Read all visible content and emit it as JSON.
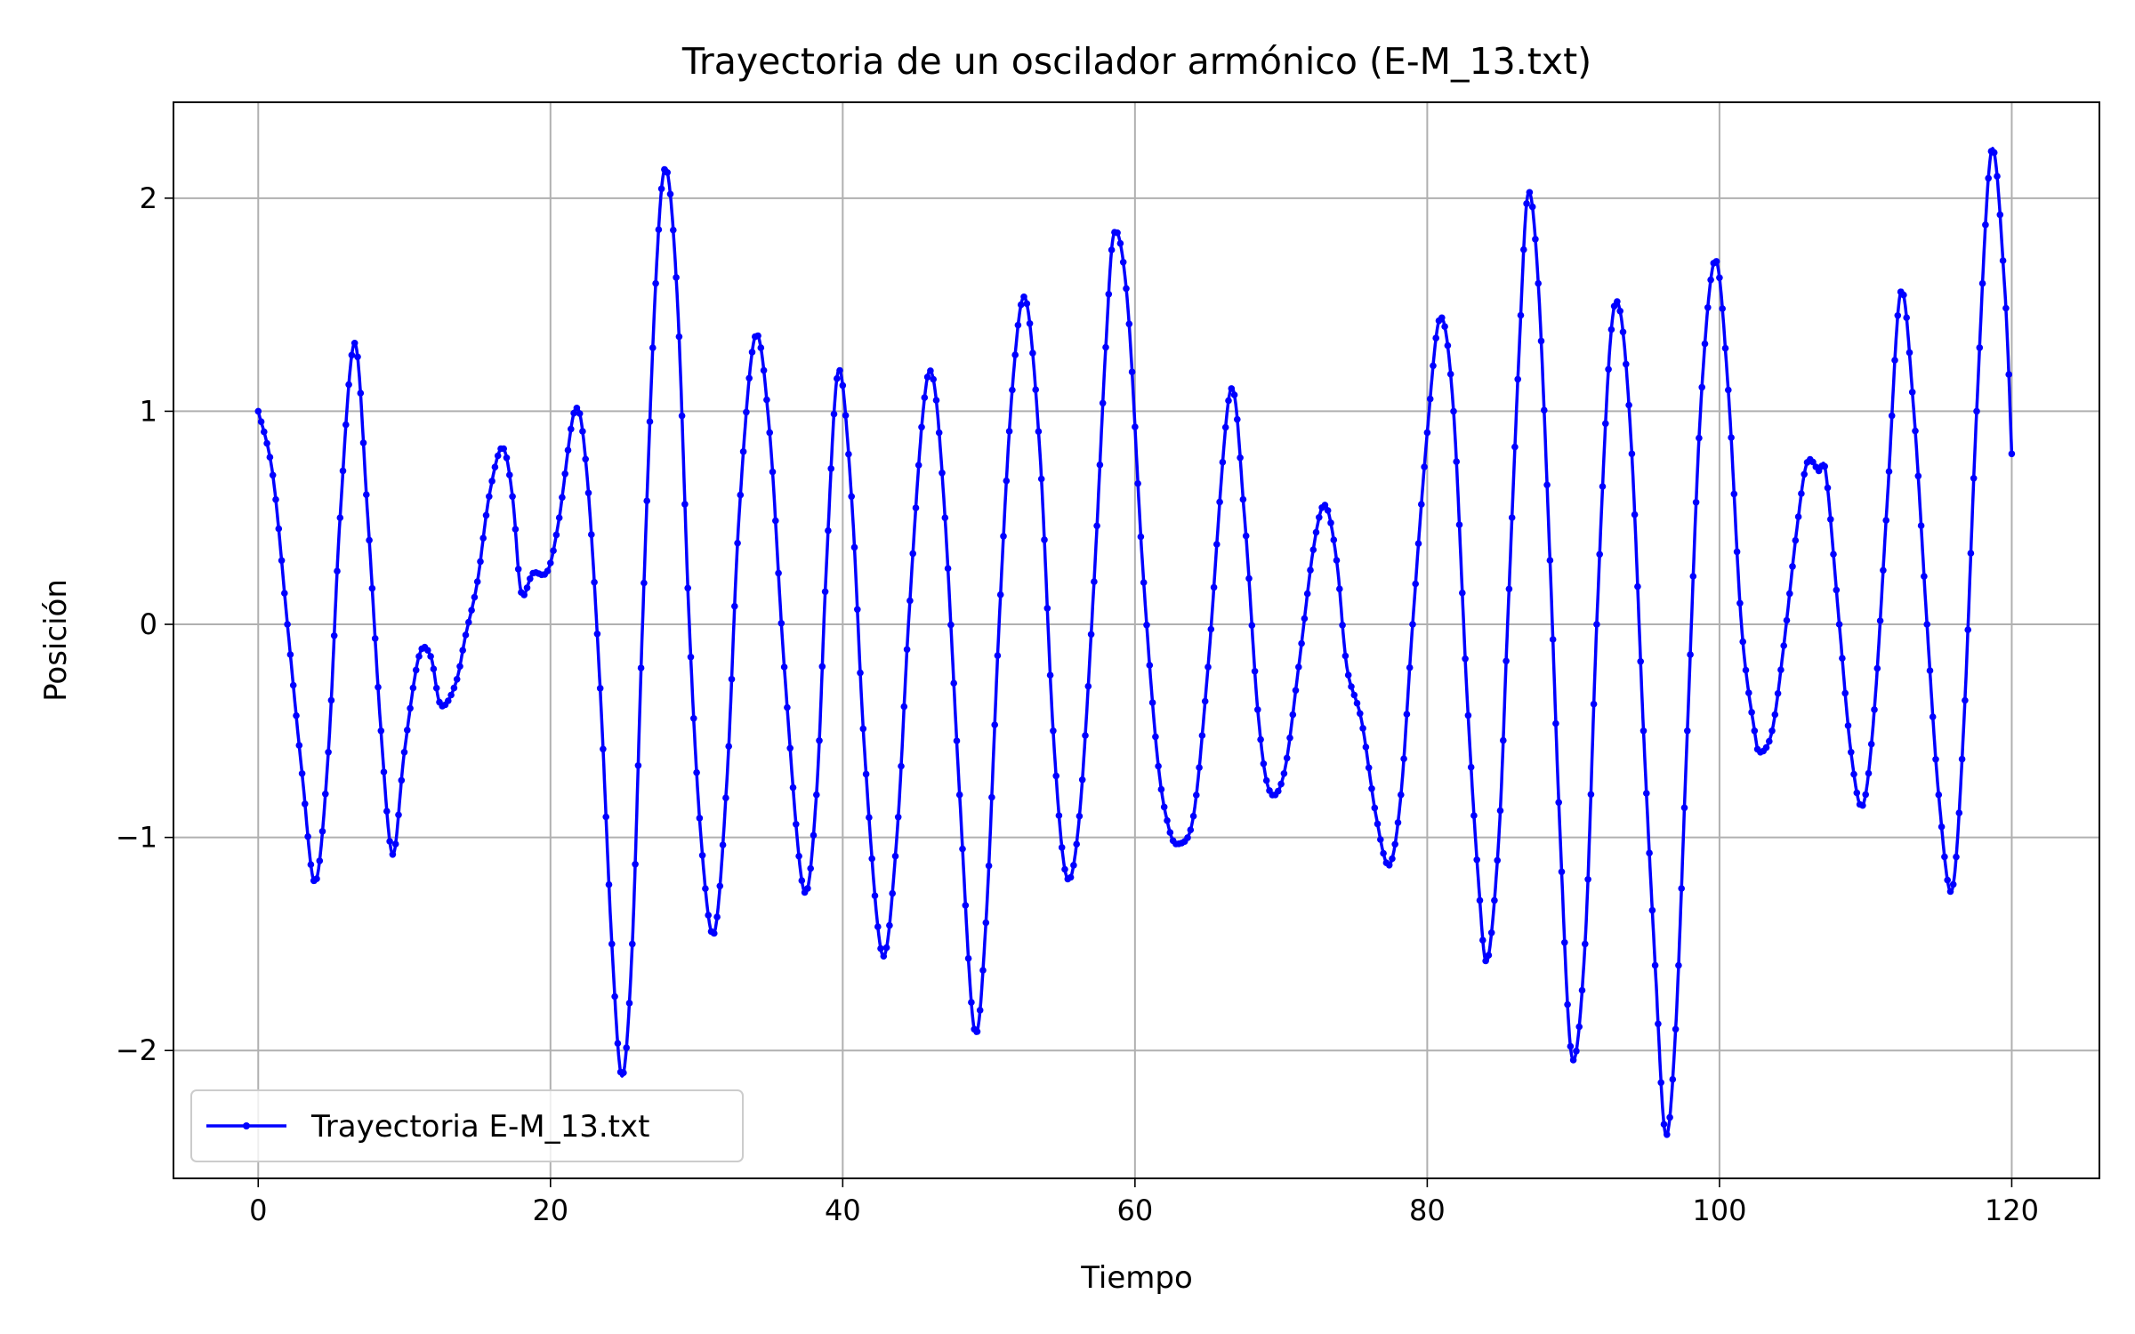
{
  "chart_data": {
    "type": "line",
    "title": "Trayectoria de un oscilador armónico (E-M_13.txt)",
    "xlabel": "Tiempo",
    "ylabel": "Posición",
    "xlim": [
      -5.8,
      126
    ],
    "ylim": [
      -2.6,
      2.45
    ],
    "xticks": [
      0,
      20,
      40,
      60,
      80,
      100,
      120
    ],
    "yticks": [
      -2,
      -1,
      0,
      1,
      2
    ],
    "xtick_labels": [
      "0",
      "20",
      "40",
      "60",
      "80",
      "100",
      "120"
    ],
    "ytick_labels": [
      "−2",
      "−1",
      "0",
      "1",
      "2"
    ],
    "grid": true,
    "legend_position": "lower-left",
    "series": [
      {
        "name": "Trayectoria E-M_13.txt",
        "color": "#0000ff",
        "marker": "point",
        "points": [
          [
            0,
            1.0
          ],
          [
            1.0,
            0.7
          ],
          [
            2.0,
            0.0
          ],
          [
            3.0,
            -0.7
          ],
          [
            3.9,
            -1.21
          ],
          [
            4.8,
            -0.6
          ],
          [
            5.6,
            0.5
          ],
          [
            6.6,
            1.32
          ],
          [
            7.5,
            0.5
          ],
          [
            8.4,
            -0.5
          ],
          [
            9.2,
            -1.08
          ],
          [
            10.0,
            -0.6
          ],
          [
            11.0,
            -0.15
          ],
          [
            11.8,
            -0.15
          ],
          [
            12.5,
            -0.38
          ],
          [
            13.5,
            -0.28
          ],
          [
            14.2,
            -0.05
          ],
          [
            15.0,
            0.2
          ],
          [
            15.8,
            0.6
          ],
          [
            16.7,
            0.83
          ],
          [
            17.4,
            0.6
          ],
          [
            18.0,
            0.15
          ],
          [
            18.8,
            0.24
          ],
          [
            19.8,
            0.25
          ],
          [
            20.6,
            0.5
          ],
          [
            21.7,
            1.01
          ],
          [
            22.5,
            0.7
          ],
          [
            23.4,
            -0.3
          ],
          [
            24.2,
            -1.5
          ],
          [
            24.9,
            -2.12
          ],
          [
            25.6,
            -1.5
          ],
          [
            26.3,
            0.0
          ],
          [
            27.2,
            1.6
          ],
          [
            27.9,
            2.14
          ],
          [
            28.7,
            1.5
          ],
          [
            29.5,
            0.0
          ],
          [
            30.3,
            -1.0
          ],
          [
            31.2,
            -1.45
          ],
          [
            32.1,
            -0.7
          ],
          [
            32.9,
            0.5
          ],
          [
            34.0,
            1.35
          ],
          [
            35.0,
            0.9
          ],
          [
            36.0,
            -0.2
          ],
          [
            37.3,
            -1.24
          ],
          [
            38.2,
            -0.8
          ],
          [
            38.9,
            0.3
          ],
          [
            39.7,
            1.19
          ],
          [
            40.6,
            0.6
          ],
          [
            41.5,
            -0.6
          ],
          [
            42.7,
            -1.55
          ],
          [
            43.7,
            -1.0
          ],
          [
            44.5,
            0.0
          ],
          [
            45.5,
            1.0
          ],
          [
            46.2,
            1.15
          ],
          [
            47.0,
            0.5
          ],
          [
            48.0,
            -0.8
          ],
          [
            49.0,
            -1.9
          ],
          [
            49.8,
            -1.4
          ],
          [
            50.7,
            0.0
          ],
          [
            51.6,
            1.1
          ],
          [
            52.5,
            1.53
          ],
          [
            53.5,
            0.8
          ],
          [
            54.4,
            -0.5
          ],
          [
            55.3,
            -1.18
          ],
          [
            56.2,
            -0.9
          ],
          [
            57.2,
            0.2
          ],
          [
            58.0,
            1.3
          ],
          [
            58.6,
            1.84
          ],
          [
            59.5,
            1.5
          ],
          [
            60.5,
            0.3
          ],
          [
            61.5,
            -0.6
          ],
          [
            62.3,
            -0.95
          ],
          [
            63.0,
            -1.03
          ],
          [
            64.0,
            -0.9
          ],
          [
            65.0,
            -0.2
          ],
          [
            66.5,
            1.09
          ],
          [
            67.5,
            0.5
          ],
          [
            68.4,
            -0.4
          ],
          [
            69.2,
            -0.78
          ],
          [
            70.2,
            -0.7
          ],
          [
            71.2,
            -0.2
          ],
          [
            72.2,
            0.35
          ],
          [
            73.0,
            0.56
          ],
          [
            73.8,
            0.3
          ],
          [
            74.5,
            -0.2
          ],
          [
            75.5,
            -0.45
          ],
          [
            76.5,
            -0.9
          ],
          [
            77.4,
            -1.13
          ],
          [
            78.2,
            -0.8
          ],
          [
            79.0,
            0.0
          ],
          [
            80.0,
            0.9
          ],
          [
            80.9,
            1.44
          ],
          [
            81.8,
            1.0
          ],
          [
            82.7,
            -0.3
          ],
          [
            83.5,
            -1.2
          ],
          [
            84.1,
            -1.58
          ],
          [
            84.9,
            -1.0
          ],
          [
            85.5,
            0.0
          ],
          [
            86.3,
            1.3
          ],
          [
            86.9,
            2.02
          ],
          [
            87.6,
            1.6
          ],
          [
            88.4,
            0.3
          ],
          [
            89.1,
            -1.0
          ],
          [
            89.9,
            -2.03
          ],
          [
            90.8,
            -1.5
          ],
          [
            91.6,
            0.0
          ],
          [
            92.5,
            1.3
          ],
          [
            93.2,
            1.47
          ],
          [
            94.0,
            0.8
          ],
          [
            94.8,
            -0.5
          ],
          [
            95.6,
            -1.6
          ],
          [
            96.3,
            -2.39
          ],
          [
            97.0,
            -1.9
          ],
          [
            97.8,
            -0.5
          ],
          [
            98.7,
            1.0
          ],
          [
            99.7,
            1.71
          ],
          [
            100.6,
            1.1
          ],
          [
            101.5,
            0.0
          ],
          [
            102.4,
            -0.5
          ],
          [
            102.8,
            -0.6
          ],
          [
            103.6,
            -0.5
          ],
          [
            104.4,
            -0.1
          ],
          [
            105.3,
            0.45
          ],
          [
            106.0,
            0.76
          ],
          [
            106.8,
            0.72
          ],
          [
            107.3,
            0.7
          ],
          [
            108.2,
            0.0
          ],
          [
            109.0,
            -0.6
          ],
          [
            109.8,
            -0.85
          ],
          [
            110.6,
            -0.4
          ],
          [
            111.5,
            0.6
          ],
          [
            112.4,
            1.56
          ],
          [
            113.3,
            1.0
          ],
          [
            114.2,
            0.0
          ],
          [
            115.0,
            -0.8
          ],
          [
            115.9,
            -1.25
          ],
          [
            116.7,
            -0.5
          ],
          [
            117.6,
            1.0
          ],
          [
            118.6,
            2.22
          ],
          [
            119.5,
            1.6
          ],
          [
            120.0,
            0.8
          ]
        ]
      }
    ]
  }
}
